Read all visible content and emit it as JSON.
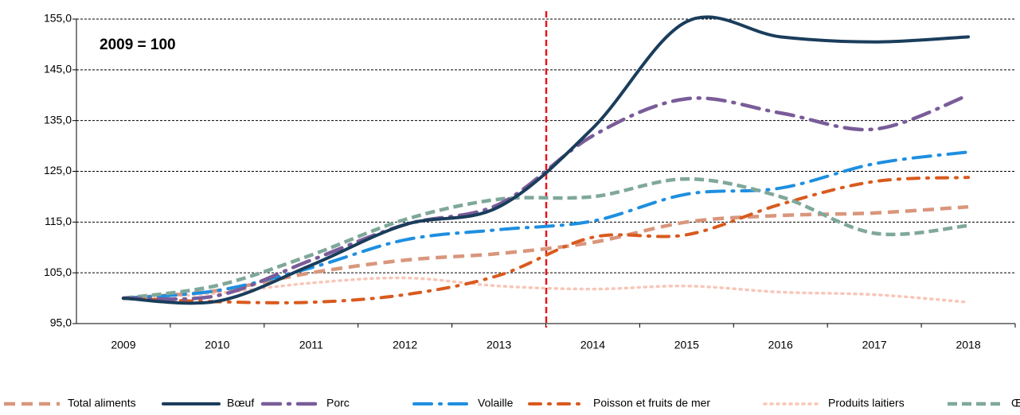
{
  "chart_data": {
    "type": "line",
    "annotation": "2009 = 100",
    "categories": [
      "2009",
      "2010",
      "2011",
      "2012",
      "2013",
      "2014",
      "2015",
      "2016",
      "2017",
      "2018"
    ],
    "ylim": [
      95,
      155
    ],
    "yticks": [
      {
        "value": 95,
        "label": "95,0"
      },
      {
        "value": 105,
        "label": "105,0"
      },
      {
        "value": 115,
        "label": "115,0"
      },
      {
        "value": 125,
        "label": "125,0"
      },
      {
        "value": 135,
        "label": "135,0"
      },
      {
        "value": 145,
        "label": "145,0"
      },
      {
        "value": 155,
        "label": "155,0"
      }
    ],
    "grid": true,
    "legend": "bottom",
    "series": [
      {
        "name": "Total aliments",
        "color": "#d9967c",
        "values": [
          100,
          101.5,
          105,
          107.5,
          108.8,
          111,
          115,
          116.3,
          116.8,
          118
        ]
      },
      {
        "name": "Bœuf",
        "color": "#1a3d5c",
        "values": [
          100,
          99.4,
          106.5,
          114.5,
          118,
          133.5,
          154.5,
          151.5,
          150.5,
          151.5
        ]
      },
      {
        "name": "Porc",
        "color": "#7a5c99",
        "values": [
          100,
          100.5,
          107.5,
          114.5,
          118.5,
          132,
          139.3,
          136.5,
          133.3,
          140
        ]
      },
      {
        "name": "Volaille",
        "color": "#1e8fe0",
        "values": [
          100,
          101.5,
          106,
          111.5,
          113.5,
          115.2,
          120.5,
          121.7,
          126.5,
          128.8
        ]
      },
      {
        "name": "Poisson et fruits de mer",
        "color": "#d95a1e",
        "values": [
          100,
          99.3,
          99.2,
          100.7,
          104.5,
          112,
          112.5,
          118.5,
          123,
          123.8
        ]
      },
      {
        "name": "Produits laitiers",
        "color": "#f8c6b8",
        "values": [
          100,
          101,
          103,
          104,
          102.4,
          101.8,
          102.4,
          101.2,
          100.7,
          99.2
        ]
      },
      {
        "name": "Œufs",
        "color": "#7fa89a",
        "values": [
          100,
          102.5,
          108.5,
          115.5,
          119.5,
          120,
          123.5,
          120,
          112.8,
          114.3
        ]
      }
    ]
  }
}
